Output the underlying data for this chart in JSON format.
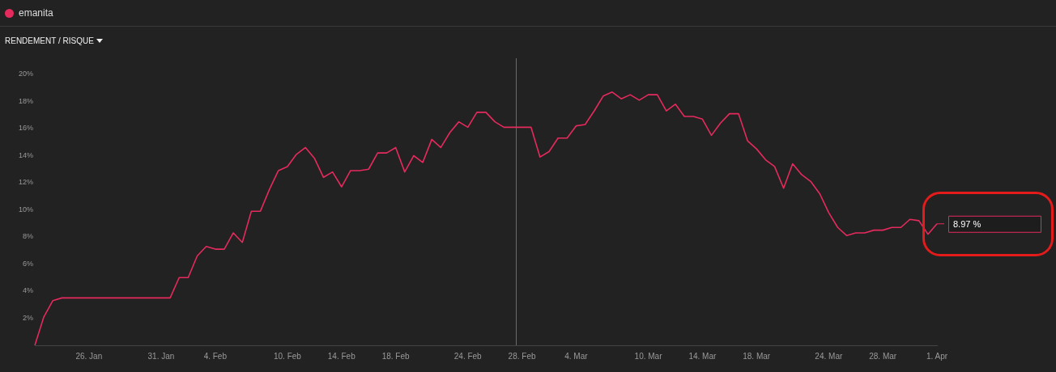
{
  "chart_data": {
    "type": "line",
    "title": "emanita",
    "subtitle": "RENDEMENT / RISQUE",
    "categories": [
      null,
      null,
      null,
      null,
      null,
      null,
      "26. Jan",
      null,
      null,
      null,
      null,
      null,
      null,
      null,
      "31. Jan",
      null,
      null,
      null,
      null,
      null,
      "4. Feb",
      null,
      null,
      null,
      null,
      null,
      null,
      null,
      "10. Feb",
      null,
      null,
      null,
      null,
      null,
      "14. Feb",
      null,
      null,
      null,
      null,
      null,
      "18. Feb",
      null,
      null,
      null,
      null,
      null,
      null,
      null,
      "24. Feb",
      null,
      null,
      null,
      null,
      null,
      "28. Feb",
      null,
      null,
      null,
      null,
      null,
      "4. Mar",
      null,
      null,
      null,
      null,
      null,
      null,
      null,
      "10. Mar",
      null,
      null,
      null,
      null,
      null,
      "14. Mar",
      null,
      null,
      null,
      null,
      null,
      "18. Mar",
      null,
      null,
      null,
      null,
      null,
      null,
      null,
      "24. Mar",
      null,
      null,
      null,
      null,
      null,
      "28. Mar",
      null,
      null,
      null,
      null,
      null,
      "1. Apr"
    ],
    "series": [
      {
        "color": "#e52a5d",
        "values": [
          0,
          2.1,
          3.3,
          3.5,
          3.5,
          3.5,
          3.5,
          3.5,
          3.5,
          3.5,
          3.5,
          3.5,
          3.5,
          3.5,
          3.5,
          3.5,
          5.0,
          5.0,
          6.6,
          7.3,
          7.1,
          7.1,
          8.3,
          7.6,
          9.9,
          9.9,
          11.5,
          12.9,
          13.2,
          14.1,
          14.6,
          13.8,
          12.4,
          12.8,
          11.7,
          12.9,
          12.9,
          13.0,
          14.2,
          14.2,
          14.6,
          12.8,
          14.0,
          13.5,
          15.2,
          14.6,
          15.7,
          16.5,
          16.1,
          17.2,
          17.2,
          16.5,
          16.1,
          16.1,
          16.1,
          16.1,
          13.9,
          14.3,
          15.3,
          15.3,
          16.2,
          16.3,
          17.3,
          18.4,
          18.7,
          18.2,
          18.5,
          18.1,
          18.5,
          18.5,
          17.3,
          17.8,
          16.9,
          16.9,
          16.7,
          15.5,
          16.4,
          17.1,
          17.1,
          15.1,
          14.5,
          13.7,
          13.2,
          11.6,
          13.4,
          12.6,
          12.1,
          11.2,
          9.8,
          8.7,
          8.1,
          8.3,
          8.3,
          8.5,
          8.5,
          8.7,
          8.7,
          9.3,
          9.2,
          8.2,
          8.97
        ]
      }
    ],
    "ylim": [
      0,
      20
    ],
    "yticks": [
      {
        "value": 2,
        "label": "2%"
      },
      {
        "value": 4,
        "label": "4%"
      },
      {
        "value": 6,
        "label": "6%"
      },
      {
        "value": 8,
        "label": "8%"
      },
      {
        "value": 10,
        "label": "10%"
      },
      {
        "value": 12,
        "label": "12%"
      },
      {
        "value": 14,
        "label": "14%"
      },
      {
        "value": 16,
        "label": "16%"
      },
      {
        "value": 18,
        "label": "18%"
      },
      {
        "value": 20,
        "label": "20%"
      }
    ],
    "marker": "none",
    "line_style": "solid",
    "annotations": [
      {
        "text": "8.97 %",
        "x": "1. Apr",
        "y": 8.97
      }
    ]
  }
}
